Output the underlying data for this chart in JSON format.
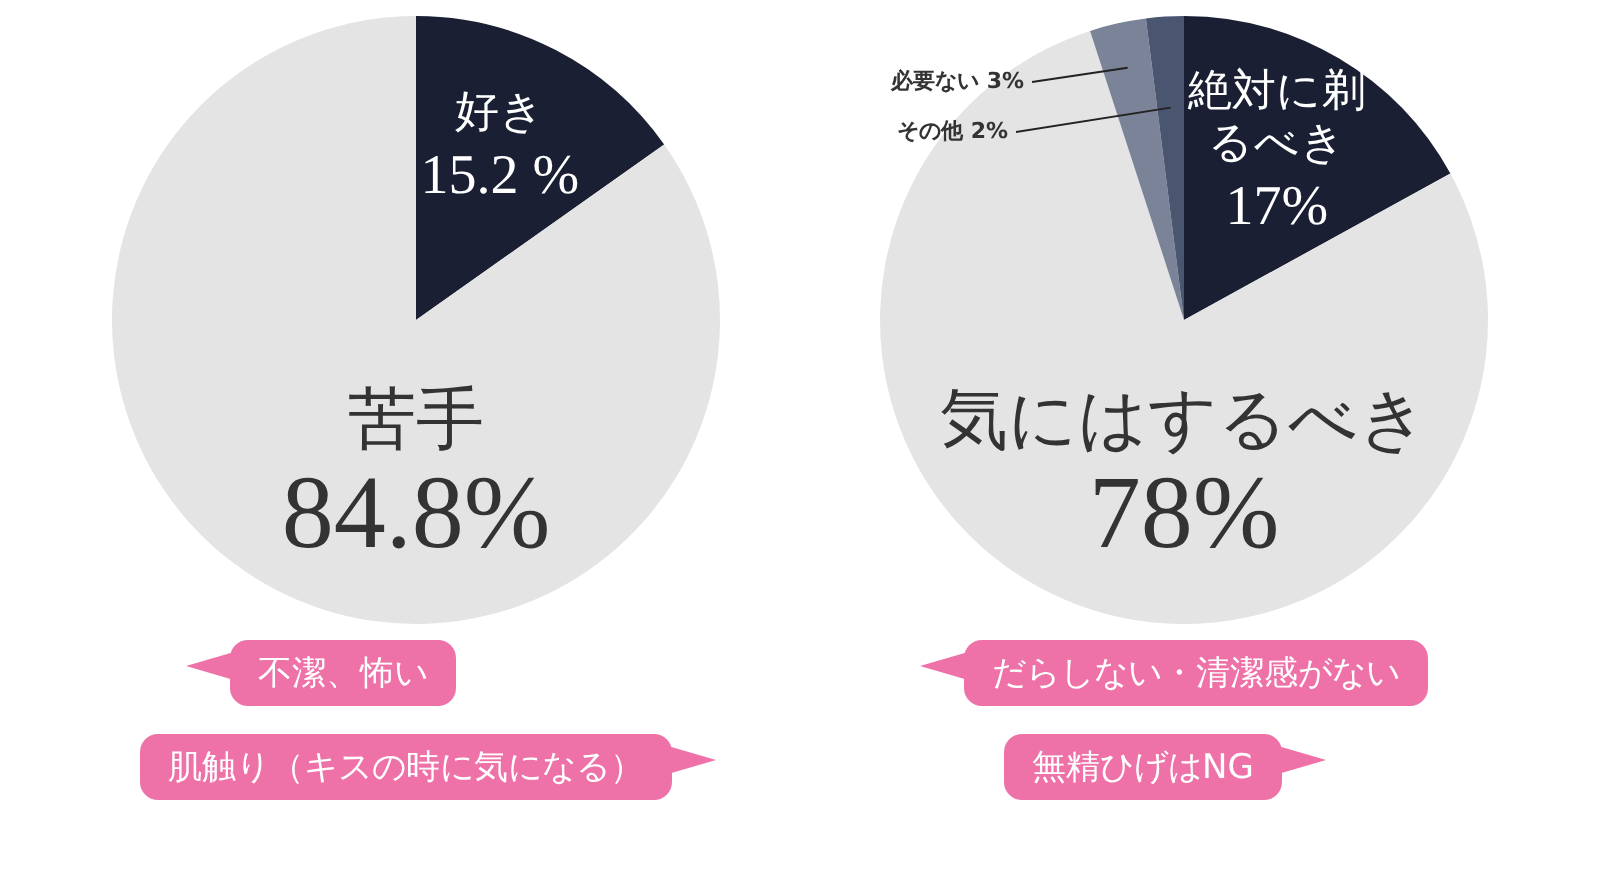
{
  "chart_data": [
    {
      "type": "pie",
      "categories": [
        "好き",
        "苦手"
      ],
      "values": [
        15.2,
        84.8
      ],
      "colors": [
        "#1b1f33",
        "#e4e4e4"
      ],
      "value_labels": [
        "15.2 %",
        "84.8%"
      ],
      "legend": false,
      "annotations": [
        "不潔、怖い",
        "肌触り（キスの時に気になる）"
      ]
    },
    {
      "type": "pie",
      "categories": [
        "絶対に剃るべき",
        "気にはするべき",
        "必要ない",
        "その他"
      ],
      "values": [
        17,
        78,
        3,
        2
      ],
      "colors": [
        "#1b1f33",
        "#e4e4e4",
        "#7b8398",
        "#4a5570"
      ],
      "value_labels": [
        "17%",
        "78%",
        "3%",
        "2%"
      ],
      "legend": false,
      "annotations": [
        "だらしない・清潔感がない",
        "無精ひげはNG"
      ]
    }
  ]
}
